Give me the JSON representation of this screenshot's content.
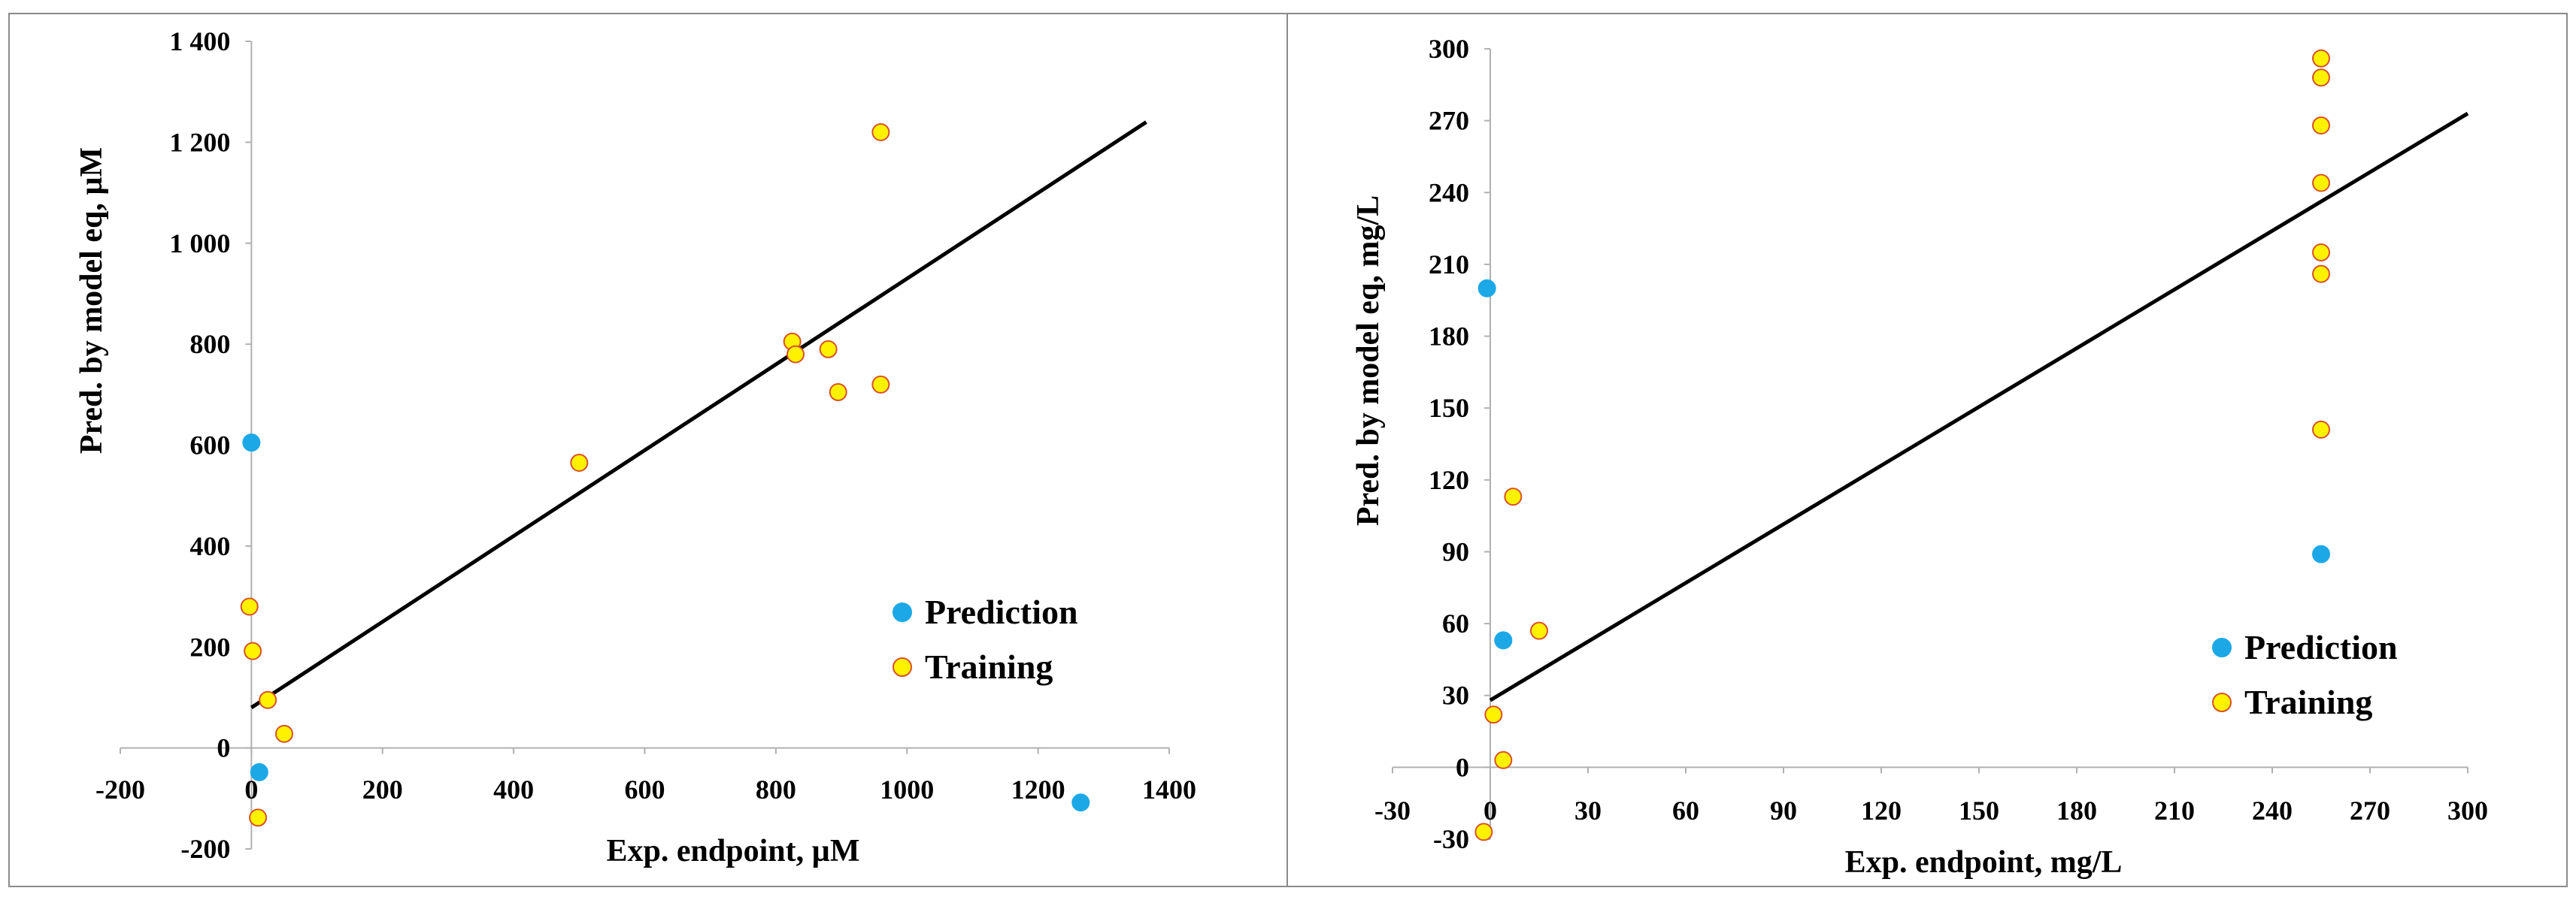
{
  "colors": {
    "prediction_fill": "#1ca8e6",
    "prediction_stroke": "#1ca8e6",
    "training_fill": "#fff200",
    "training_stroke": "#d8502a",
    "axis": "#b0b0b0",
    "fit_line": "#000000",
    "frame": "#8a8a8a"
  },
  "chart_data": [
    {
      "type": "scatter",
      "title": "",
      "xlabel": "Exp. endpoint,  µM",
      "ylabel": "Pred. by model eq, µM",
      "xlim": [
        -200,
        1400
      ],
      "ylim": [
        -200,
        1400
      ],
      "x_ticks": [
        -200,
        0,
        200,
        400,
        600,
        800,
        1000,
        1200,
        1400
      ],
      "x_tick_labels": [
        "-200",
        "0",
        "200",
        "400",
        "600",
        "800",
        "1000",
        "1200",
        "1400"
      ],
      "y_ticks": [
        -200,
        0,
        200,
        400,
        600,
        800,
        1000,
        1200,
        1400
      ],
      "y_tick_labels": [
        "-200",
        "0",
        "200",
        "400",
        "600",
        "800",
        "1 000",
        "1 200",
        "1 400"
      ],
      "grid": false,
      "legend_position": "lower-right",
      "series": [
        {
          "name": "Prediction",
          "color_key": "prediction",
          "points": [
            [
              0,
              605
            ],
            [
              12,
              -48
            ],
            [
              1265,
              -108
            ]
          ]
        },
        {
          "name": "Training",
          "color_key": "training",
          "points": [
            [
              -3,
              280
            ],
            [
              2,
              192
            ],
            [
              25,
              95
            ],
            [
              50,
              28
            ],
            [
              10,
              -138
            ],
            [
              500,
              565
            ],
            [
              825,
              805
            ],
            [
              830,
              780
            ],
            [
              880,
              790
            ],
            [
              895,
              705
            ],
            [
              960,
              720
            ],
            [
              960,
              1220
            ]
          ]
        }
      ],
      "fit_line": {
        "x1": 0,
        "y1": 80,
        "x2": 1365,
        "y2": 1240
      }
    },
    {
      "type": "scatter",
      "title": "",
      "xlabel": "Exp. endpoint,  mg/L",
      "ylabel": "Pred. by model eq, mg/L",
      "xlim": [
        -30,
        300
      ],
      "ylim": [
        -30,
        300
      ],
      "x_ticks": [
        -30,
        0,
        30,
        60,
        90,
        120,
        150,
        180,
        210,
        240,
        270,
        300
      ],
      "x_tick_labels": [
        "-30",
        "0",
        "30",
        "60",
        "90",
        "120",
        "150",
        "180",
        "210",
        "240",
        "270",
        "300"
      ],
      "y_ticks": [
        -30,
        0,
        30,
        60,
        90,
        120,
        150,
        180,
        210,
        240,
        270,
        300
      ],
      "y_tick_labels": [
        "-30",
        "0",
        "30",
        "60",
        "90",
        "120",
        "150",
        "180",
        "210",
        "240",
        "270",
        "300"
      ],
      "grid": false,
      "legend_position": "lower-right",
      "series": [
        {
          "name": "Prediction",
          "color_key": "prediction",
          "points": [
            [
              -1,
              200
            ],
            [
              4,
              53
            ],
            [
              255,
              89
            ]
          ]
        },
        {
          "name": "Training",
          "color_key": "training",
          "points": [
            [
              -2,
              -27
            ],
            [
              1,
              22
            ],
            [
              4,
              3
            ],
            [
              7,
              113
            ],
            [
              15,
              57
            ],
            [
              255,
              296
            ],
            [
              255,
              288
            ],
            [
              255,
              268
            ],
            [
              255,
              244
            ],
            [
              255,
              215
            ],
            [
              255,
              206
            ],
            [
              255,
              141
            ]
          ]
        }
      ],
      "fit_line": {
        "x1": 0,
        "y1": 28,
        "x2": 300,
        "y2": 273
      }
    }
  ]
}
